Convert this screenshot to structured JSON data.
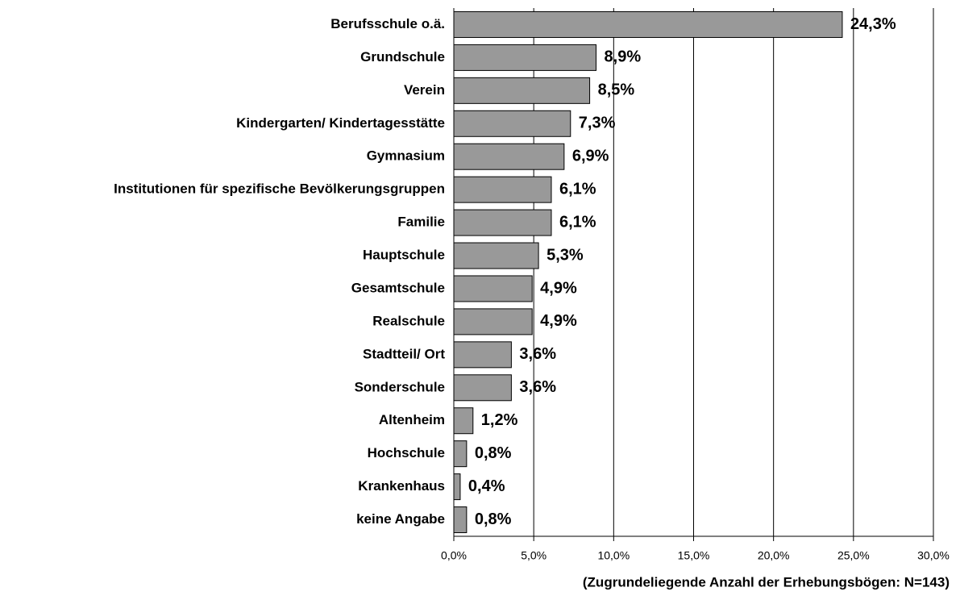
{
  "chart_data": {
    "type": "bar",
    "orientation": "horizontal",
    "categories": [
      "Berufsschule o.ä.",
      "Grundschule",
      "Verein",
      "Kindergarten/ Kindertagesstätte",
      "Gymnasium",
      "Institutionen für spezifische Bevölkerungsgruppen",
      "Familie",
      "Hauptschule",
      "Gesamtschule",
      "Realschule",
      "Stadtteil/ Ort",
      "Sonderschule",
      "Altenheim",
      "Hochschule",
      "Krankenhaus",
      "keine Angabe"
    ],
    "values": [
      24.3,
      8.9,
      8.5,
      7.3,
      6.9,
      6.1,
      6.1,
      5.3,
      4.9,
      4.9,
      3.6,
      3.6,
      1.2,
      0.8,
      0.4,
      0.8
    ],
    "value_labels": [
      "24,3%",
      "8,9%",
      "8,5%",
      "7,3%",
      "6,9%",
      "6,1%",
      "6,1%",
      "5,3%",
      "4,9%",
      "4,9%",
      "3,6%",
      "3,6%",
      "1,2%",
      "0,8%",
      "0,4%",
      "0,8%"
    ],
    "color": "#999999",
    "xlim": [
      0,
      30
    ],
    "xticks": [
      {
        "value": 0,
        "label": "0,0%"
      },
      {
        "value": 5,
        "label": "5,0%"
      },
      {
        "value": 10,
        "label": "10,0%"
      },
      {
        "value": 15,
        "label": "15,0%"
      },
      {
        "value": 20,
        "label": "20,0%"
      },
      {
        "value": 25,
        "label": "25,0%"
      },
      {
        "value": 30,
        "label": "30,0%"
      }
    ],
    "x_label": "(Zugrundeliegende Anzahl der Erhebungsbögen: N=143)",
    "grid": true
  }
}
